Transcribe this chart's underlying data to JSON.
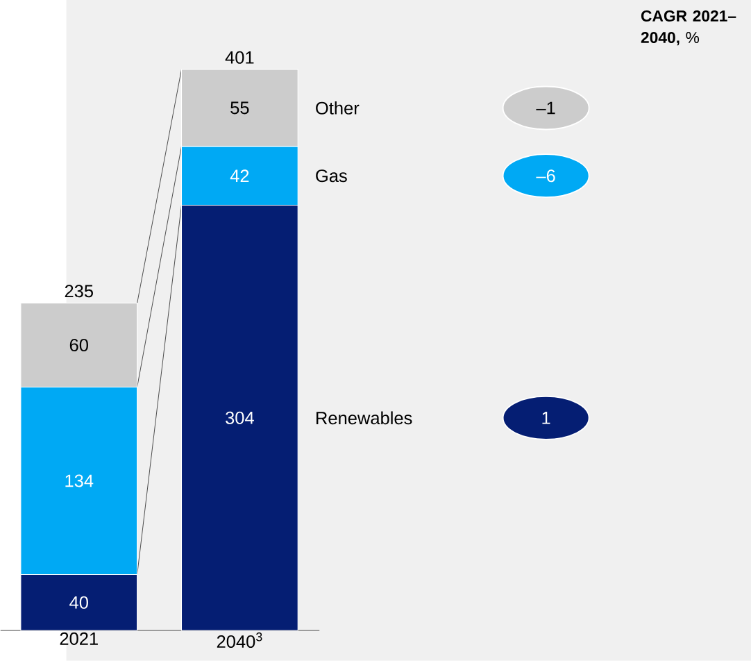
{
  "chart_data": {
    "type": "bar",
    "stacked": true,
    "data_labels": true,
    "title": "**CAGR 2021–2040,** %",
    "categories": [
      "2021",
      "2040$^{3}$"
    ],
    "series": [
      {
        "name": "Renewables",
        "color": "#051e73",
        "values": [
          40,
          304
        ]
      },
      {
        "name": "Gas",
        "color": "#00a9f4",
        "values": [
          134,
          42
        ]
      },
      {
        "name": "Other",
        "color": "#cccccc",
        "values": [
          60,
          55
        ]
      }
    ],
    "totals": [
      "235",
      "401"
    ],
    "annotations": [
      "–1",
      "–6",
      "1"
    ]
  }
}
